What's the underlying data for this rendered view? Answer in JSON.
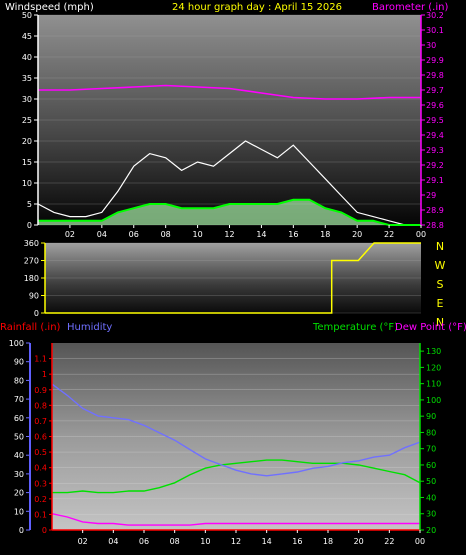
{
  "header": {
    "windspeed_label": "Windspeed (mph)",
    "graph_title": "24 hour graph day : April 15 2026",
    "barometer_label": "Barometer (.in)"
  },
  "legend2": {
    "rainfall": "Rainfall (.in)",
    "humidity": "Humidity",
    "temperature": "Temperature (°F)",
    "dewpoint": "Dew Point (°F)"
  },
  "compass_letters": [
    "N",
    "W",
    "S",
    "E",
    "N"
  ],
  "colors": {
    "windspeed_label": "#ffffff",
    "title": "#ffff00",
    "barometer": "#ff00ff",
    "gust": "#ffffff",
    "wind_avg": "#00ff00",
    "wind_fill": "#a8f0a8",
    "direction": "#ffff00",
    "rainfall": "#ff0000",
    "humidity": "#7070ff",
    "temperature": "#00e000",
    "dewpoint": "#ff00ff",
    "background": "#000000"
  },
  "chart_data": [
    {
      "type": "line",
      "name": "wind-barometer",
      "x_ticks": [
        "02",
        "04",
        "06",
        "08",
        "10",
        "12",
        "14",
        "16",
        "18",
        "20",
        "22",
        "00"
      ],
      "y_left_ticks": [
        "0",
        "5",
        "10",
        "15",
        "20",
        "25",
        "30",
        "35",
        "40",
        "45",
        "50"
      ],
      "ylim_left": [
        0,
        50
      ],
      "y_right_ticks": [
        "28.8",
        "28.9",
        "29",
        "29.1",
        "29.2",
        "29.3",
        "29.4",
        "29.5",
        "29.6",
        "29.7",
        "29.8",
        "29.9",
        "30",
        "30.1",
        "30.2"
      ],
      "ylim_right": [
        28.8,
        30.2
      ],
      "ylabel_left": "Windspeed (mph)",
      "ylabel_right": "Barometer (.in)",
      "series": [
        {
          "name": "Windspeed",
          "axis": "left",
          "x": [
            0,
            1,
            2,
            3,
            4,
            5,
            6,
            7,
            8,
            9,
            10,
            11,
            12,
            13,
            14,
            15,
            16,
            17,
            18,
            19,
            20,
            21,
            22,
            23,
            24
          ],
          "values": [
            1,
            1,
            1,
            1,
            1,
            3,
            4,
            5,
            5,
            4,
            4,
            4,
            5,
            5,
            5,
            5,
            6,
            6,
            4,
            3,
            1,
            1,
            0,
            0,
            0
          ]
        },
        {
          "name": "Gust",
          "axis": "left",
          "x": [
            0,
            1,
            2,
            3,
            4,
            5,
            6,
            7,
            8,
            9,
            10,
            11,
            12,
            13,
            14,
            15,
            16,
            17,
            18,
            19,
            20,
            21,
            22,
            23,
            24
          ],
          "values": [
            5,
            3,
            2,
            2,
            3,
            8,
            14,
            17,
            16,
            13,
            15,
            14,
            17,
            20,
            18,
            16,
            19,
            15,
            11,
            7,
            3,
            2,
            1,
            0,
            0
          ]
        },
        {
          "name": "Barometer",
          "axis": "right",
          "x": [
            0,
            2,
            4,
            6,
            8,
            10,
            12,
            14,
            16,
            18,
            20,
            22,
            24
          ],
          "values": [
            29.7,
            29.7,
            29.71,
            29.72,
            29.73,
            29.72,
            29.71,
            29.68,
            29.65,
            29.64,
            29.64,
            29.65,
            29.65
          ]
        }
      ]
    },
    {
      "type": "line",
      "name": "wind-direction",
      "x_ticks": [],
      "y_ticks": [
        "0",
        "90",
        "180",
        "270",
        "360"
      ],
      "ylim": [
        0,
        360
      ],
      "series": [
        {
          "name": "Direction",
          "x": [
            0,
            18.3,
            18.3,
            19,
            20,
            21,
            24
          ],
          "values": [
            0,
            0,
            270,
            270,
            270,
            360,
            360
          ]
        }
      ]
    },
    {
      "type": "line",
      "name": "temperature-humidity",
      "x_ticks": [
        "02",
        "04",
        "06",
        "08",
        "10",
        "12",
        "14",
        "16",
        "18",
        "20",
        "22",
        "00"
      ],
      "y_left_outer_ticks": [
        "0",
        "10",
        "20",
        "30",
        "40",
        "50",
        "60",
        "70",
        "80",
        "90",
        "100"
      ],
      "ylim_humidity": [
        0,
        100
      ],
      "y_left_inner_ticks": [
        "0",
        "0.1",
        "0.2",
        "0.3",
        "0.4",
        "0.5",
        "0.6",
        "0.7",
        "0.8",
        "0.9",
        "1",
        "1.1"
      ],
      "ylim_rain": [
        0,
        1.2
      ],
      "y_right_ticks": [
        "20",
        "30",
        "40",
        "50",
        "60",
        "70",
        "80",
        "90",
        "100",
        "110",
        "120",
        "130"
      ],
      "ylim_temp": [
        20,
        135
      ],
      "series": [
        {
          "name": "Humidity",
          "axis": "humidity",
          "x": [
            0,
            1,
            2,
            3,
            4,
            5,
            6,
            7,
            8,
            9,
            10,
            11,
            12,
            13,
            14,
            15,
            16,
            17,
            18,
            19,
            20,
            21,
            22,
            23,
            24
          ],
          "values": [
            78,
            72,
            65,
            61,
            60,
            59,
            56,
            52,
            48,
            43,
            38,
            35,
            32,
            30,
            29,
            30,
            31,
            33,
            34,
            36,
            37,
            39,
            40,
            44,
            47
          ]
        },
        {
          "name": "Temperature",
          "axis": "temp",
          "x": [
            0,
            1,
            2,
            3,
            4,
            5,
            6,
            7,
            8,
            9,
            10,
            11,
            12,
            13,
            14,
            15,
            16,
            17,
            18,
            19,
            20,
            21,
            22,
            23,
            24
          ],
          "values": [
            43,
            43,
            44,
            43,
            43,
            44,
            44,
            46,
            49,
            54,
            58,
            60,
            61,
            62,
            63,
            63,
            62,
            61,
            61,
            61,
            60,
            58,
            56,
            54,
            49
          ]
        },
        {
          "name": "Dew Point",
          "axis": "temp",
          "x": [
            0,
            1,
            2,
            3,
            4,
            5,
            6,
            7,
            8,
            9,
            10,
            11,
            12,
            13,
            14,
            15,
            16,
            17,
            18,
            19,
            20,
            21,
            22,
            23,
            24
          ],
          "values": [
            30,
            28,
            25,
            24,
            24,
            23,
            23,
            23,
            23,
            23,
            24,
            24,
            24,
            24,
            24,
            24,
            24,
            24,
            24,
            24,
            24,
            24,
            24,
            24,
            24
          ]
        },
        {
          "name": "Rainfall",
          "axis": "rain",
          "x": [
            0,
            24
          ],
          "values": [
            0,
            0
          ]
        }
      ]
    }
  ]
}
